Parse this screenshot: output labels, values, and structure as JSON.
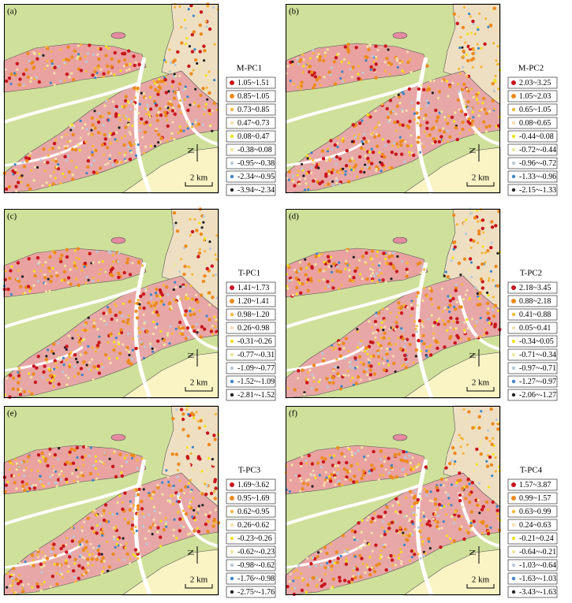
{
  "panels": [
    {
      "label": "(a)",
      "title": "M-PC1",
      "north": "N",
      "scale": "2 km",
      "legend": [
        "1.05~1.51",
        "0.85~1.05",
        "0.73~0.85",
        "0.47~0.73",
        "0.08~0.47",
        "-0.38~0.08",
        "-0.95~-0.38",
        "-2.34~-0.95",
        "-3.94~-2.34"
      ]
    },
    {
      "label": "(b)",
      "title": "M-PC2",
      "north": "N",
      "scale": "2 km",
      "legend": [
        "2.03~3.25",
        "1.05~2.03",
        "0.65~1.05",
        "0.08~0.65",
        "-0.44~0.08",
        "-0.72~-0.44",
        "-0.96~-0.72",
        "-1.33~-0.96",
        "-2.15~-1.33"
      ]
    },
    {
      "label": "(c)",
      "title": "T-PC1",
      "north": "N",
      "scale": "2 km",
      "legend": [
        "1.41~1.73",
        "1.20~1.41",
        "0.98~1.20",
        "0.26~0.98",
        "-0.31~0.26",
        "-0.77~-0.31",
        "-1.09~-0.77",
        "-1.52~-1.09",
        "-2.81~-1.52"
      ]
    },
    {
      "label": "(d)",
      "title": "T-PC2",
      "north": "N",
      "scale": "2 km",
      "legend": [
        "2.18~3.45",
        "0.88~2.18",
        "0.41~0.88",
        "0.05~0.41",
        "-0.34~0.05",
        "-0.71~-0.34",
        "-0.97~-0.71",
        "-1.27~-0.97",
        "-2.06~-1.27"
      ]
    },
    {
      "label": "(e)",
      "title": "T-PC3",
      "north": "N",
      "scale": "2 km",
      "legend": [
        "1.69~3.62",
        "0.95~1.69",
        "0.62~0.95",
        "0.26~0.62",
        "-0.23~0.26",
        "-0.62~-0.23",
        "-0.98~-0.62",
        "-1.76~-0.98",
        "-2.75~-1.76"
      ]
    },
    {
      "label": "(f)",
      "title": "T-PC4",
      "north": "N",
      "scale": "2 km",
      "legend": [
        "1.57~3.87",
        "0.99~1.57",
        "0.63~0.99",
        "0.24~0.63",
        "-0.21~0.24",
        "-0.64~-0.21",
        "-1.03~-0.64",
        "-1.63~-1.03",
        "-3.43~-1.63"
      ]
    }
  ]
}
